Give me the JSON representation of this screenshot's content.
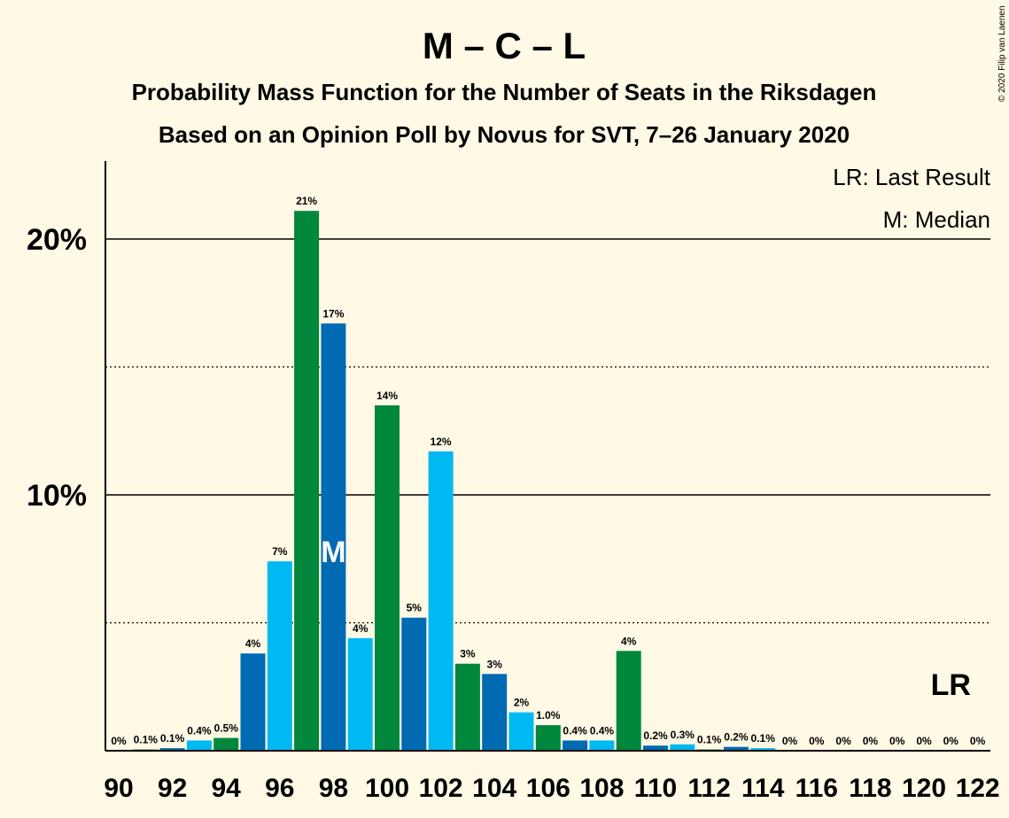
{
  "title": "M – C – L",
  "subtitle1": "Probability Mass Function for the Number of Seats in the Riksdagen",
  "subtitle2": "Based on an Opinion Poll by Novus for SVT, 7–26 January 2020",
  "copyright": "© 2020 Filip van Laenen",
  "legend": {
    "last_result": "LR: Last Result",
    "median": "M: Median"
  },
  "colors": {
    "background": "#fff9e5",
    "green": "#00873c",
    "dark_blue": "#006ab3",
    "light_blue": "#00b9f2"
  },
  "chart_data": {
    "type": "bar",
    "y_ticks": [
      {
        "value": 10,
        "label": "10%"
      },
      {
        "value": 20,
        "label": "20%"
      }
    ],
    "ylim": [
      0,
      23
    ],
    "dotted_gridlines": [
      5,
      15
    ],
    "solid_gridlines": [
      10,
      20
    ],
    "median_seat": 98,
    "median_label": "M",
    "last_result_seat": 121,
    "last_result_label": "LR",
    "x_tick_labels": [
      "90",
      "92",
      "94",
      "96",
      "98",
      "100",
      "102",
      "104",
      "106",
      "108",
      "110",
      "112",
      "114",
      "116",
      "118",
      "120",
      "122"
    ],
    "bars": [
      {
        "seat": 90,
        "value": 0,
        "label": "0%",
        "color": "light_blue"
      },
      {
        "seat": 91,
        "value": 0.05,
        "label": "0.1%",
        "color": "green"
      },
      {
        "seat": 92,
        "value": 0.1,
        "label": "0.1%",
        "color": "dark_blue"
      },
      {
        "seat": 93,
        "value": 0.4,
        "label": "0.4%",
        "color": "light_blue"
      },
      {
        "seat": 94,
        "value": 0.5,
        "label": "0.5%",
        "color": "green"
      },
      {
        "seat": 95,
        "value": 3.8,
        "label": "4%",
        "color": "dark_blue"
      },
      {
        "seat": 96,
        "value": 7.4,
        "label": "7%",
        "color": "light_blue"
      },
      {
        "seat": 97,
        "value": 21.1,
        "label": "21%",
        "color": "green"
      },
      {
        "seat": 98,
        "value": 16.7,
        "label": "17%",
        "color": "dark_blue"
      },
      {
        "seat": 99,
        "value": 4.4,
        "label": "4%",
        "color": "light_blue"
      },
      {
        "seat": 100,
        "value": 13.5,
        "label": "14%",
        "color": "green"
      },
      {
        "seat": 101,
        "value": 5.2,
        "label": "5%",
        "color": "dark_blue"
      },
      {
        "seat": 102,
        "value": 11.7,
        "label": "12%",
        "color": "light_blue"
      },
      {
        "seat": 103,
        "value": 3.4,
        "label": "3%",
        "color": "green"
      },
      {
        "seat": 104,
        "value": 3.0,
        "label": "3%",
        "color": "dark_blue"
      },
      {
        "seat": 105,
        "value": 1.5,
        "label": "2%",
        "color": "light_blue"
      },
      {
        "seat": 106,
        "value": 1.0,
        "label": "1.0%",
        "color": "green"
      },
      {
        "seat": 107,
        "value": 0.4,
        "label": "0.4%",
        "color": "dark_blue"
      },
      {
        "seat": 108,
        "value": 0.4,
        "label": "0.4%",
        "color": "light_blue"
      },
      {
        "seat": 109,
        "value": 3.9,
        "label": "4%",
        "color": "green"
      },
      {
        "seat": 110,
        "value": 0.2,
        "label": "0.2%",
        "color": "dark_blue"
      },
      {
        "seat": 111,
        "value": 0.25,
        "label": "0.3%",
        "color": "light_blue"
      },
      {
        "seat": 112,
        "value": 0.05,
        "label": "0.1%",
        "color": "green"
      },
      {
        "seat": 113,
        "value": 0.15,
        "label": "0.2%",
        "color": "dark_blue"
      },
      {
        "seat": 114,
        "value": 0.1,
        "label": "0.1%",
        "color": "light_blue"
      },
      {
        "seat": 115,
        "value": 0,
        "label": "0%",
        "color": "green"
      },
      {
        "seat": 116,
        "value": 0,
        "label": "0%",
        "color": "dark_blue"
      },
      {
        "seat": 117,
        "value": 0,
        "label": "0%",
        "color": "light_blue"
      },
      {
        "seat": 118,
        "value": 0,
        "label": "0%",
        "color": "green"
      },
      {
        "seat": 119,
        "value": 0,
        "label": "0%",
        "color": "dark_blue"
      },
      {
        "seat": 120,
        "value": 0,
        "label": "0%",
        "color": "light_blue"
      },
      {
        "seat": 121,
        "value": 0,
        "label": "0%",
        "color": "green"
      },
      {
        "seat": 122,
        "value": 0,
        "label": "0%",
        "color": "dark_blue"
      }
    ]
  }
}
